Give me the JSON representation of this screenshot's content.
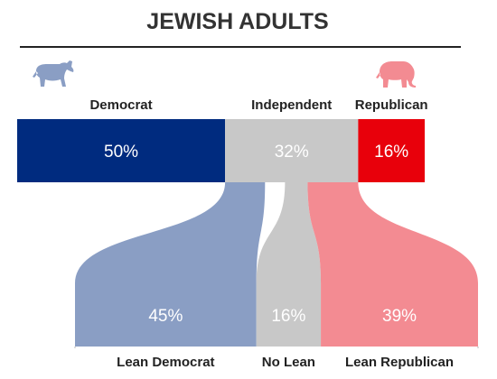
{
  "chart_data": {
    "type": "bar",
    "title": "JEWISH ADULTS",
    "top_row": {
      "categories": [
        "Democrat",
        "Independent",
        "Republican"
      ],
      "values": [
        50,
        32,
        16
      ],
      "labels": [
        "50%",
        "32%",
        "16%"
      ],
      "colors": [
        "#002b7f",
        "#c8c8c8",
        "#e8000b"
      ]
    },
    "bottom_row": {
      "categories": [
        "Lean Democrat",
        "No Lean",
        "Lean Republican"
      ],
      "values": [
        45,
        16,
        39
      ],
      "labels": [
        "45%",
        "16%",
        "39%"
      ],
      "colors": [
        "#8a9ec4",
        "#c8c8c8",
        "#f38b92"
      ]
    },
    "icons": [
      "donkey-icon",
      "elephant-icon"
    ]
  }
}
